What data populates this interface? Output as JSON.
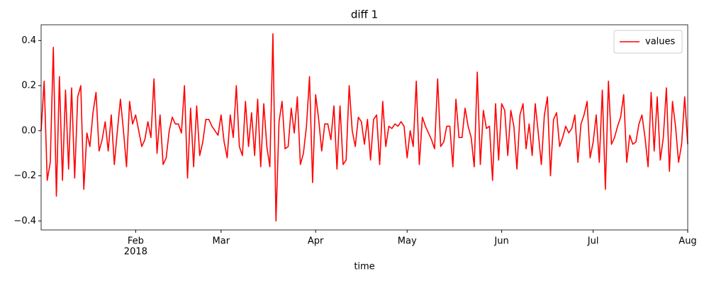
{
  "chart_data": {
    "type": "line",
    "title": "diff 1",
    "xlabel": "time",
    "x": [
      0,
      1,
      2,
      3,
      4,
      5,
      6,
      7,
      8,
      9,
      10,
      11,
      12,
      13,
      14,
      15,
      16,
      17,
      18,
      19,
      20,
      21,
      22,
      23,
      24,
      25,
      26,
      27,
      28,
      29,
      30,
      31,
      32,
      33,
      34,
      35,
      36,
      37,
      38,
      39,
      40,
      41,
      42,
      43,
      44,
      45,
      46,
      47,
      48,
      49,
      50,
      51,
      52,
      53,
      54,
      55,
      56,
      57,
      58,
      59,
      60,
      61,
      62,
      63,
      64,
      65,
      66,
      67,
      68,
      69,
      70,
      71,
      72,
      73,
      74,
      75,
      76,
      77,
      78,
      79,
      80,
      81,
      82,
      83,
      84,
      85,
      86,
      87,
      88,
      89,
      90,
      91,
      92,
      93,
      94,
      95,
      96,
      97,
      98,
      99,
      100,
      101,
      102,
      103,
      104,
      105,
      106,
      107,
      108,
      109,
      110,
      111,
      112,
      113,
      114,
      115,
      116,
      117,
      118,
      119,
      120,
      121,
      122,
      123,
      124,
      125,
      126,
      127,
      128,
      129,
      130,
      131,
      132,
      133,
      134,
      135,
      136,
      137,
      138,
      139,
      140,
      141,
      142,
      143,
      144,
      145,
      146,
      147,
      148,
      149,
      150,
      151,
      152,
      153,
      154,
      155,
      156,
      157,
      158,
      159,
      160,
      161,
      162,
      163,
      164,
      165,
      166,
      167,
      168,
      169,
      170,
      171,
      172,
      173,
      174,
      175,
      176,
      177,
      178,
      179,
      180,
      181,
      182,
      183,
      184,
      185,
      186,
      187,
      188,
      189,
      190,
      191,
      192,
      193,
      194,
      195,
      196,
      197,
      198,
      199,
      200,
      201,
      202,
      203,
      204,
      205,
      206,
      207,
      208,
      209,
      210,
      211,
      212
    ],
    "series": [
      {
        "name": "values",
        "color": "#ff0000",
        "values": [
          0.0,
          0.22,
          -0.22,
          -0.14,
          0.37,
          -0.29,
          0.24,
          -0.22,
          0.18,
          -0.17,
          0.19,
          -0.21,
          0.15,
          0.2,
          -0.26,
          -0.01,
          -0.07,
          0.08,
          0.17,
          -0.09,
          -0.04,
          0.04,
          -0.09,
          0.07,
          -0.15,
          0.0,
          0.14,
          0.0,
          -0.16,
          0.13,
          0.03,
          0.07,
          0.0,
          -0.07,
          -0.04,
          0.04,
          -0.03,
          0.23,
          -0.1,
          0.07,
          -0.15,
          -0.12,
          0.0,
          0.06,
          0.03,
          0.03,
          -0.01,
          0.2,
          -0.21,
          0.1,
          -0.16,
          0.11,
          -0.11,
          -0.05,
          0.05,
          0.05,
          0.02,
          0.0,
          -0.02,
          0.07,
          -0.05,
          -0.12,
          0.07,
          -0.03,
          0.2,
          -0.07,
          -0.11,
          0.13,
          -0.07,
          0.08,
          -0.11,
          0.14,
          -0.16,
          0.12,
          -0.07,
          -0.16,
          0.43,
          -0.4,
          0.04,
          0.13,
          -0.08,
          -0.07,
          0.1,
          -0.01,
          0.15,
          -0.15,
          -0.1,
          0.02,
          0.24,
          -0.23,
          0.16,
          0.05,
          -0.09,
          0.03,
          0.03,
          -0.04,
          0.11,
          -0.17,
          0.11,
          -0.15,
          -0.13,
          0.2,
          0.0,
          -0.07,
          0.06,
          0.04,
          -0.06,
          0.05,
          -0.13,
          0.05,
          0.07,
          -0.15,
          0.13,
          -0.07,
          0.02,
          0.01,
          0.03,
          0.02,
          0.04,
          0.02,
          -0.12,
          0.0,
          -0.07,
          0.22,
          -0.15,
          0.06,
          0.02,
          -0.01,
          -0.04,
          -0.08,
          0.23,
          -0.07,
          -0.05,
          0.02,
          0.02,
          -0.16,
          0.14,
          -0.03,
          -0.03,
          0.1,
          0.02,
          -0.03,
          -0.16,
          0.26,
          -0.15,
          0.09,
          0.01,
          0.02,
          -0.22,
          0.12,
          -0.13,
          0.12,
          0.09,
          -0.11,
          0.09,
          0.02,
          -0.17,
          0.07,
          0.12,
          -0.08,
          0.03,
          -0.11,
          0.12,
          -0.01,
          -0.15,
          0.07,
          0.15,
          -0.2,
          0.05,
          0.08,
          -0.07,
          -0.03,
          0.02,
          -0.01,
          0.01,
          0.07,
          -0.14,
          0.03,
          0.07,
          0.13,
          -0.12,
          -0.05,
          0.07,
          -0.14,
          0.18,
          -0.26,
          0.22,
          -0.06,
          -0.03,
          0.02,
          0.06,
          0.16,
          -0.14,
          -0.02,
          -0.06,
          -0.05,
          0.03,
          0.07,
          -0.03,
          -0.16,
          0.17,
          -0.09,
          0.15,
          -0.13,
          -0.03,
          0.19,
          -0.18,
          0.13,
          0.02,
          -0.14,
          -0.06,
          0.15,
          -0.06
        ]
      }
    ],
    "xlim": [
      0,
      212
    ],
    "xticks": [
      {
        "value": 31,
        "label": "Feb",
        "sublabel": "2018"
      },
      {
        "value": 59,
        "label": "Mar"
      },
      {
        "value": 90,
        "label": "Apr"
      },
      {
        "value": 120,
        "label": "May"
      },
      {
        "value": 151,
        "label": "Jun"
      },
      {
        "value": 181,
        "label": "Jul"
      },
      {
        "value": 212,
        "label": "Aug"
      }
    ],
    "ylim": [
      -0.44,
      0.47
    ],
    "yticks": [
      {
        "value": -0.4,
        "label": "−0.4"
      },
      {
        "value": -0.2,
        "label": "−0.2"
      },
      {
        "value": 0,
        "label": "0.0"
      },
      0.2,
      0.4
    ],
    "grid": false,
    "legend": "upper right"
  }
}
